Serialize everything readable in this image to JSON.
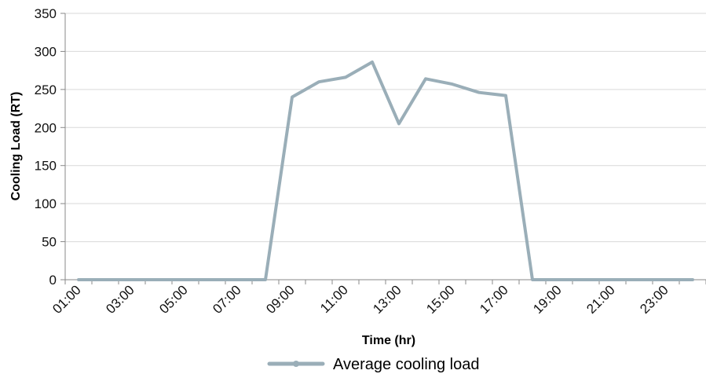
{
  "chart_data": {
    "type": "line",
    "xlabel": "Time (hr)",
    "ylabel": "Cooling Load  (RT)",
    "ylim": [
      0,
      350
    ],
    "yticks": [
      "0",
      "50",
      "100",
      "150",
      "200",
      "250",
      "300",
      "350"
    ],
    "x_tick_labels": [
      "01:00",
      "03:00",
      "05:00",
      "07:00",
      "09:00",
      "11:00",
      "13:00",
      "15:00",
      "17:00",
      "19:00",
      "21:00",
      "23:00"
    ],
    "categories": [
      "01:00",
      "02:00",
      "03:00",
      "04:00",
      "05:00",
      "06:00",
      "07:00",
      "08:00",
      "09:00",
      "10:00",
      "11:00",
      "12:00",
      "13:00",
      "14:00",
      "15:00",
      "16:00",
      "17:00",
      "18:00",
      "19:00",
      "20:00",
      "21:00",
      "22:00",
      "23:00",
      "24:00"
    ],
    "grid": true,
    "legend_position": "bottom",
    "series": [
      {
        "name": "Average cooling load",
        "color": "#9aaeb8",
        "values": [
          0,
          0,
          0,
          0,
          0,
          0,
          0,
          0,
          240,
          260,
          266,
          286,
          205,
          264,
          257,
          246,
          242,
          0,
          0,
          0,
          0,
          0,
          0,
          0
        ]
      }
    ]
  }
}
